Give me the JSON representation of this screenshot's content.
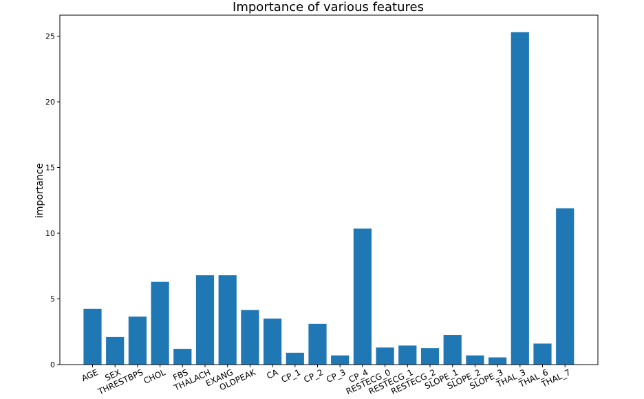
{
  "chart_data": {
    "type": "bar",
    "title": "Importance of various features",
    "xlabel": "",
    "ylabel": "importance",
    "categories": [
      "AGE",
      "SEX",
      "THRESTBPS",
      "CHOL",
      "FBS",
      "THALACH",
      "EXANG",
      "OLDPEAK",
      "CA",
      "CP_1",
      "CP_2",
      "CP_3",
      "CP_4",
      "RESTECG_0",
      "RESTECG_1",
      "RESTECG_2",
      "SLOPE_1",
      "SLOPE_2",
      "SLOPE_3",
      "THAL_3",
      "THAL_6",
      "THAL_7"
    ],
    "values": [
      4.25,
      2.1,
      3.65,
      6.3,
      1.2,
      6.8,
      6.8,
      4.15,
      3.5,
      0.9,
      3.1,
      0.7,
      10.35,
      1.3,
      1.45,
      1.25,
      2.25,
      0.7,
      0.55,
      25.3,
      1.6,
      11.9
    ],
    "yticks": [
      0,
      5,
      10,
      15,
      20,
      25
    ],
    "ylim": [
      0,
      26.6
    ],
    "grid": false,
    "color": "#1f77b4"
  }
}
